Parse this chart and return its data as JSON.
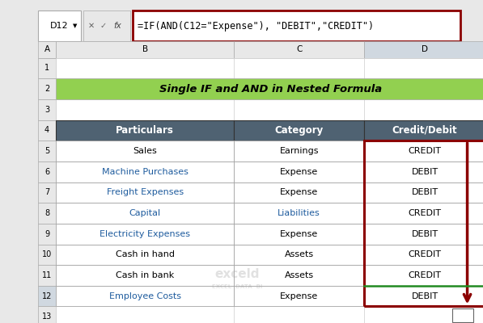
{
  "title": "Single IF and AND in Nested Formula",
  "formula_cell": "D12",
  "formula_text": "=IF(AND(C12=\"Expense\"), \"DEBIT\",\"CREDIT\")",
  "columns": [
    "Particulars",
    "Category",
    "Credit/Debit"
  ],
  "rows": [
    [
      "Sales",
      "Earnings",
      "CREDIT"
    ],
    [
      "Machine Purchases",
      "Expense",
      "DEBIT"
    ],
    [
      "Freight Expenses",
      "Expense",
      "DEBIT"
    ],
    [
      "Capital",
      "Liabilities",
      "CREDIT"
    ],
    [
      "Electricity Expenses",
      "Expense",
      "DEBIT"
    ],
    [
      "Cash in hand",
      "Assets",
      "CREDIT"
    ],
    [
      "Cash in bank",
      "Assets",
      "CREDIT"
    ],
    [
      "Employee Costs",
      "Expense",
      "DEBIT"
    ]
  ],
  "header_bg": "#4F6272",
  "header_text": "#FFFFFF",
  "title_bg": "#92D050",
  "title_text": "#000000",
  "formula_box_border": "#8B0000",
  "row_text_colors": [
    [
      "#000000",
      "#000000",
      "#000000"
    ],
    [
      "#1F5C9E",
      "#000000",
      "#000000"
    ],
    [
      "#1F5C9E",
      "#000000",
      "#000000"
    ],
    [
      "#1F5C9E",
      "#1F5C9E",
      "#000000"
    ],
    [
      "#1F5C9E",
      "#000000",
      "#000000"
    ],
    [
      "#000000",
      "#000000",
      "#000000"
    ],
    [
      "#000000",
      "#000000",
      "#000000"
    ],
    [
      "#1F5C9E",
      "#000000",
      "#000000"
    ]
  ],
  "arrow_color": "#8B0000",
  "highlight_border_color": "#8B0000",
  "last_row_top_line": "#228B22",
  "excel_bg": "#E8E8E8"
}
